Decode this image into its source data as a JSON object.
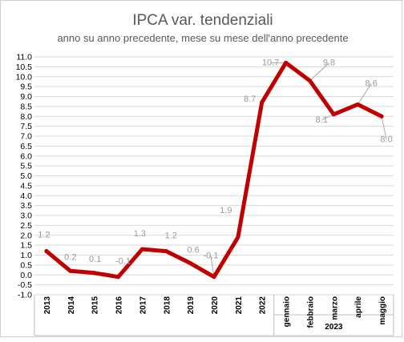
{
  "chart_data": {
    "type": "line",
    "title": "IPCA var. tendenziali",
    "subtitle": "anno su anno precedente, mese su mese dell'anno precedente",
    "categories": [
      "2013",
      "2014",
      "2015",
      "2016",
      "2017",
      "2018",
      "2019",
      "2020",
      "2021",
      "2022",
      "gennaio",
      "febbraio",
      "marzo",
      "aprile",
      "maggio"
    ],
    "category_group": {
      "label": "2023",
      "from_index": 10,
      "to_index": 14
    },
    "series": [
      {
        "values": [
          1.2,
          0.2,
          0.1,
          -0.1,
          1.3,
          1.2,
          0.6,
          -0.1,
          1.9,
          8.7,
          10.7,
          9.8,
          8.1,
          8.6,
          8.0
        ]
      }
    ],
    "data_labels": [
      "1.2",
      "0.2",
      "0.1",
      "-0.1",
      "1.3",
      "1.2",
      "0.6",
      "-0.1",
      "1.9",
      "8.7",
      "10.7",
      "9.8",
      "8.1",
      "8.6",
      "8.0"
    ],
    "ylim": [
      -1.0,
      11.0
    ],
    "ytick_labels": [
      "11.0",
      "10.5",
      "10.0",
      "9.5",
      "9.0",
      "8.5",
      "8.0",
      "7.5",
      "7.0",
      "6.5",
      "6.0",
      "5.5",
      "5.0",
      "4.5",
      "4.0",
      "3.5",
      "3.0",
      "2.5",
      "2.0",
      "1.5",
      "1.0",
      "0.5",
      "0.0",
      "-0.5",
      "-1.0"
    ],
    "grid": true,
    "legend": "none",
    "line_color": "#c00000",
    "label_color": "#9a9a9a"
  }
}
